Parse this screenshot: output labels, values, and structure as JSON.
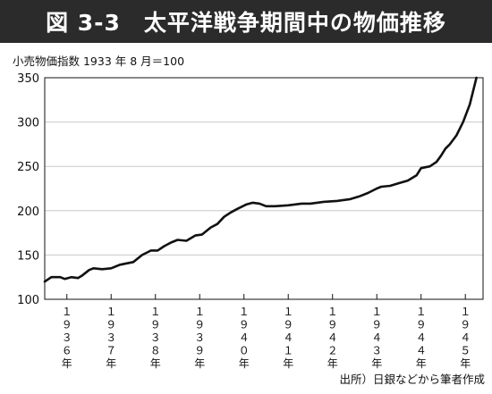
{
  "title": "図 3-3　太平洋戦争期間中の物価推移",
  "subtitle": "小売物価指数 1933 年 8 月＝100",
  "source": "出所）日銀などから筆者作成",
  "chart_data": {
    "type": "line",
    "title": "図 3-3　太平洋戦争期間中の物価推移",
    "xlabel": "",
    "ylabel": "小売物価指数 1933 年 8 月＝100",
    "xlim": [
      1936.0,
      1945.9
    ],
    "ylim": [
      100,
      350
    ],
    "yticks": [
      100,
      150,
      200,
      250,
      300,
      350
    ],
    "xticks": [
      {
        "x": 1936.5,
        "label": "１９３６年"
      },
      {
        "x": 1937.5,
        "label": "１９３７年"
      },
      {
        "x": 1938.5,
        "label": "１９３８年"
      },
      {
        "x": 1939.5,
        "label": "１９３９年"
      },
      {
        "x": 1940.5,
        "label": "１９４０年"
      },
      {
        "x": 1941.5,
        "label": "１９４１年"
      },
      {
        "x": 1942.5,
        "label": "１９４２年"
      },
      {
        "x": 1943.5,
        "label": "１９４３年"
      },
      {
        "x": 1944.5,
        "label": "１９４４年"
      },
      {
        "x": 1945.5,
        "label": "１９４５年"
      }
    ],
    "grid": {
      "horizontal": true,
      "vertical": false
    },
    "legend": "none",
    "line_color": "#111111",
    "series": [
      {
        "x": [
          1936.0,
          1936.15,
          1936.35,
          1936.45,
          1936.6,
          1936.75,
          1936.85,
          1937.0,
          1937.1,
          1937.3,
          1937.5,
          1937.7,
          1937.8,
          1938.0,
          1938.2,
          1938.4,
          1938.55,
          1938.7,
          1938.85,
          1939.0,
          1939.2,
          1939.4,
          1939.55,
          1939.75,
          1939.9,
          1940.05,
          1940.2,
          1940.35,
          1940.55,
          1940.7,
          1940.85,
          1941.0,
          1941.2,
          1941.5,
          1941.8,
          1942.0,
          1942.3,
          1942.6,
          1942.9,
          1943.1,
          1943.3,
          1943.5,
          1943.6,
          1943.8,
          1944.0,
          1944.2,
          1944.4,
          1944.5,
          1944.7,
          1944.85,
          1944.95,
          1945.05,
          1945.15,
          1945.3,
          1945.45,
          1945.6,
          1945.75
        ],
        "y": [
          120,
          125,
          125,
          123,
          125,
          124,
          127,
          133,
          135,
          134,
          135,
          139,
          140,
          142,
          150,
          155,
          155,
          160,
          164,
          167,
          166,
          172,
          173,
          181,
          185,
          193,
          198,
          202,
          207,
          209,
          208,
          205,
          205,
          206,
          208,
          208,
          210,
          211,
          213,
          216,
          220,
          225,
          227,
          228,
          231,
          234,
          240,
          248,
          250,
          255,
          262,
          270,
          275,
          285,
          300,
          320,
          350
        ]
      }
    ]
  }
}
